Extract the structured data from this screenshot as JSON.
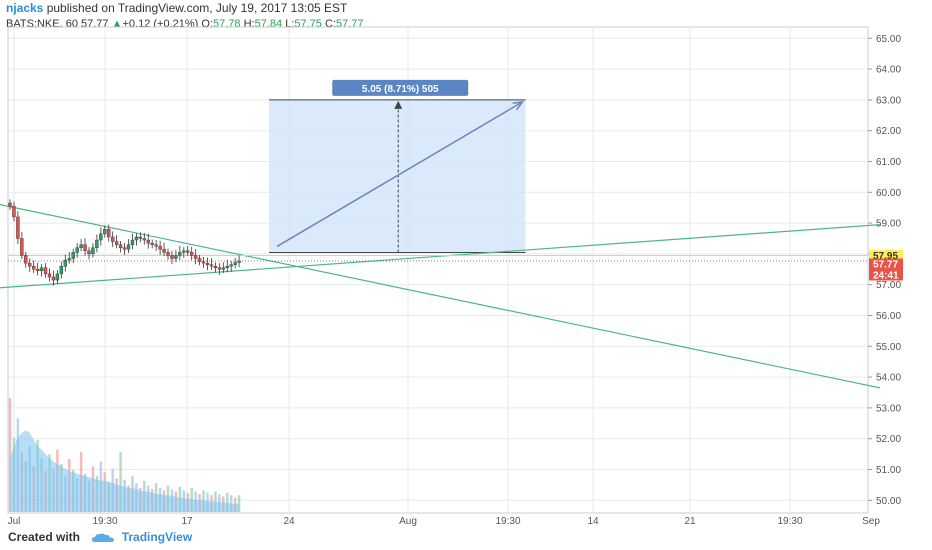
{
  "header": {
    "author": "njacks",
    "published_text": "published on TradingView.com, July 19, 2017 13:05 EST",
    "symbol_line_prefix": "BATS:NKE, 60",
    "last_price": "57.77",
    "change_arrow": "▲",
    "change": "+0.12 (+0.21%)",
    "open_label": "O:",
    "open_value": "57.78",
    "high_label": "H:",
    "high_value": "57.84",
    "low_label": "L:",
    "low_value": "57.75",
    "close_label": "C:",
    "close_value": "57.77"
  },
  "footer": {
    "created_with": "Created with",
    "brand": "TradingView"
  },
  "colors": {
    "up": "#2ca05a",
    "down": "#d9534f",
    "trendline": "#4cb78a",
    "projection_fill": "#cfe3fa",
    "projection_border": "#444444",
    "label_bg": "#5b86c4",
    "volume_area": "#7cc3f0",
    "grid": "#e6e9ee",
    "price_line": "#f5d742",
    "badge_yellow": "#ffee58",
    "badge_red": "#e8534a",
    "author_blue": "#2a8fd8"
  },
  "chart_data": {
    "type": "candlestick",
    "symbol": "BATS:NKE",
    "interval": "60",
    "ylim": [
      49.6,
      65.3
    ],
    "y_ticks": [
      "65.00",
      "64.00",
      "63.00",
      "62.00",
      "61.00",
      "60.00",
      "59.00",
      "58.00",
      "57.00",
      "56.00",
      "55.00",
      "54.00",
      "53.00",
      "52.00",
      "51.00",
      "50.00"
    ],
    "x_ticks": [
      "Jul",
      "19:30",
      "17",
      "24",
      "Aug",
      "19:30",
      "14",
      "21",
      "19:30",
      "Sep"
    ],
    "close_path": [
      59.55,
      59.2,
      58.5,
      57.95,
      57.7,
      57.6,
      57.5,
      57.45,
      57.55,
      57.35,
      57.25,
      57.15,
      57.35,
      57.6,
      57.8,
      57.85,
      58.05,
      58.2,
      58.3,
      58.1,
      58.0,
      58.2,
      58.45,
      58.65,
      58.8,
      58.55,
      58.4,
      58.3,
      58.2,
      58.15,
      58.3,
      58.45,
      58.55,
      58.5,
      58.45,
      58.35,
      58.3,
      58.25,
      58.15,
      58.05,
      57.95,
      57.85,
      57.95,
      58.05,
      58.1,
      58.05,
      57.95,
      57.85,
      57.75,
      57.7,
      57.65,
      57.6,
      57.55,
      57.5,
      57.55,
      57.6,
      57.65,
      57.72,
      57.77
    ],
    "trendlines": [
      {
        "name": "falling-trendline",
        "from": [
          0,
          59.6
        ],
        "to": [
          880,
          53.65
        ]
      },
      {
        "name": "rising-trendline",
        "from": [
          0,
          56.9
        ],
        "to": [
          880,
          58.95
        ]
      }
    ],
    "projection": {
      "label": "5.05 (8.71%) 505",
      "start_price": 57.95,
      "target_price": 63.0,
      "start_bar": 60,
      "end_bar": 150,
      "arrow_end_bar": 147
    },
    "price_line": 57.77,
    "price_badges": [
      {
        "text": "57.95",
        "price": 57.95,
        "style": "yellow"
      },
      {
        "text": "57.77",
        "price": 57.77,
        "style": "red"
      },
      {
        "text": "24:41",
        "price": 57.77,
        "style": "red"
      }
    ],
    "volume_heights": [
      0.95,
      0.62,
      0.78,
      0.5,
      0.42,
      0.55,
      0.38,
      0.6,
      0.45,
      0.34,
      0.48,
      0.36,
      0.52,
      0.4,
      0.3,
      0.44,
      0.35,
      0.28,
      0.5,
      0.32,
      0.26,
      0.38,
      0.3,
      0.42,
      0.33,
      0.25,
      0.36,
      0.28,
      0.5,
      0.27,
      0.22,
      0.3,
      0.24,
      0.2,
      0.26,
      0.22,
      0.19,
      0.24,
      0.2,
      0.18,
      0.22,
      0.19,
      0.17,
      0.21,
      0.18,
      0.16,
      0.2,
      0.17,
      0.15,
      0.18,
      0.16,
      0.14,
      0.17,
      0.15,
      0.13,
      0.16,
      0.14,
      0.12,
      0.14
    ]
  }
}
